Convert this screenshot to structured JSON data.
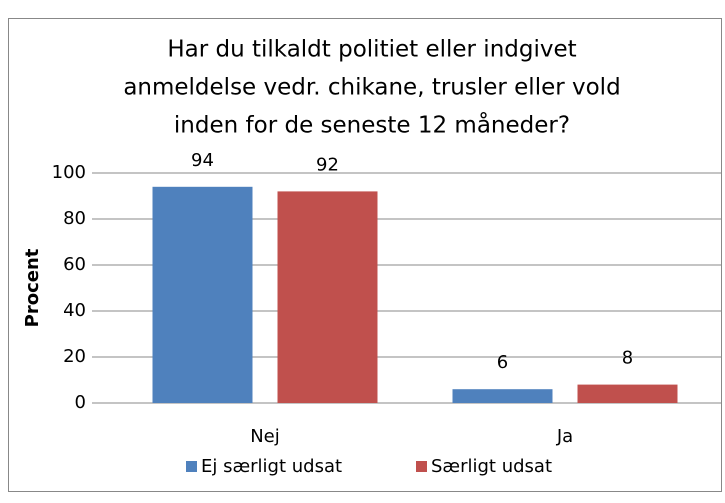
{
  "chart_data": {
    "type": "bar",
    "title": [
      "Har du tilkaldt politiet eller indgivet",
      "anmeldelse vedr. chikane, trusler eller vold",
      "inden for de seneste 12 måneder?"
    ],
    "y_label": "Procent",
    "categories": [
      "Nej",
      "Ja"
    ],
    "series": [
      {
        "name": "Ej særligt udsat",
        "color": "#4f81bd",
        "values": [
          94,
          6
        ]
      },
      {
        "name": "Særligt udsat",
        "color": "#c0504d",
        "values": [
          92,
          8
        ]
      }
    ],
    "ylim": [
      0,
      100
    ],
    "yticks": [
      0,
      20,
      40,
      60,
      80,
      100
    ],
    "grid": true,
    "legend": "bottom"
  }
}
